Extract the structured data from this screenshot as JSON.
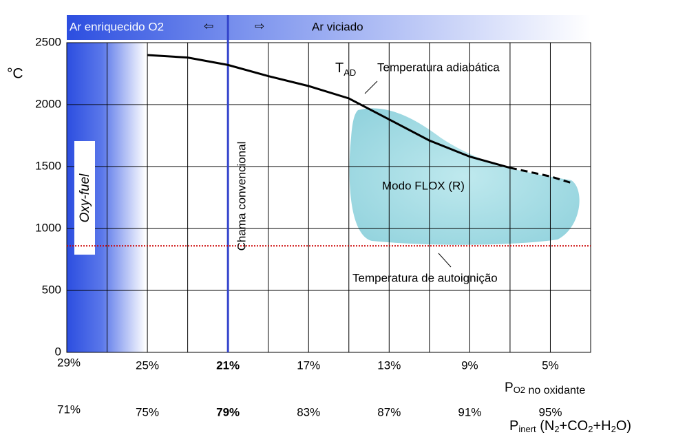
{
  "chart_data": {
    "type": "line",
    "top_left_label": "Ar enriquecido O2",
    "arrow_left": "⇦",
    "arrow_right": "⇨",
    "top_right_label": "Ar viciado",
    "y_unit": "°C",
    "tad_label": [
      "T",
      "AD"
    ],
    "tad_text": "Temperatura adiabática",
    "flox_label": "Modo FLOX (R)",
    "autoignition_label": "Temperatura de autoignição",
    "oxyfuel_label": "Oxy-fuel",
    "conventional_label": "Chama convencional",
    "x_label": [
      "P",
      "O2",
      " no oxidante"
    ],
    "x2_label": [
      "P",
      "inert",
      " (N",
      "2",
      "+CO",
      "2",
      "+H",
      "2",
      "O)"
    ],
    "xlim": [
      29,
      3
    ],
    "ylim": [
      0,
      2500
    ],
    "yticks": [
      0,
      500,
      1000,
      1500,
      2000,
      2500
    ],
    "xgrid": [
      27,
      25,
      23,
      21,
      19,
      17,
      15,
      13,
      11,
      9,
      7,
      5,
      3
    ],
    "xticks": [
      {
        "value": 29,
        "label": "29%"
      },
      {
        "value": 25,
        "label": "25%"
      },
      {
        "value": 21,
        "label": "21%"
      },
      {
        "value": 17,
        "label": "17%"
      },
      {
        "value": 13,
        "label": "13%"
      },
      {
        "value": 9,
        "label": "9%"
      },
      {
        "value": 5,
        "label": "5%"
      }
    ],
    "x2ticks": [
      {
        "value": 29,
        "label": "71%"
      },
      {
        "value": 25,
        "label": "75%"
      },
      {
        "value": 21,
        "label": "79%"
      },
      {
        "value": 17,
        "label": "83%"
      },
      {
        "value": 13,
        "label": "87%"
      },
      {
        "value": 9,
        "label": "91%"
      },
      {
        "value": 5,
        "label": "95%"
      }
    ],
    "highlight_x": 21,
    "highlight_color": "#3344cc",
    "reference_line": {
      "value": 860,
      "color": "#cc0000"
    },
    "series": [
      {
        "color": "#000000",
        "dashed": false,
        "x": [
          25,
          23,
          21,
          19,
          17,
          15,
          13,
          11,
          9,
          7
        ],
        "values": [
          2400,
          2380,
          2320,
          2230,
          2150,
          2050,
          1880,
          1710,
          1580,
          1490
        ]
      },
      {
        "color": "#000000",
        "dashed": true,
        "x": [
          7,
          5,
          4
        ],
        "values": [
          1490,
          1420,
          1370
        ]
      }
    ]
  }
}
